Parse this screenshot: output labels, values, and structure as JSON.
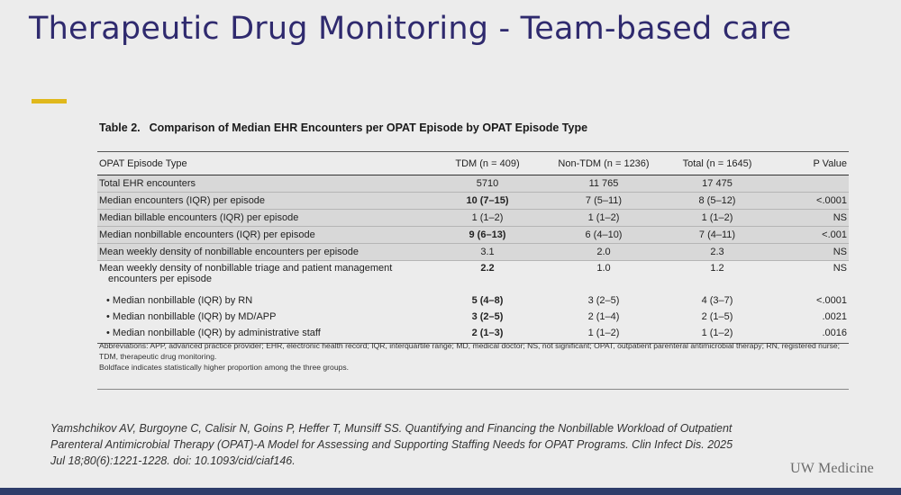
{
  "slide": {
    "title": "Therapeutic Drug Monitoring - Team-based care",
    "accent_color": "#e0b81c",
    "logo": "UW Medicine"
  },
  "table": {
    "label": "Table 2.",
    "title": "Comparison of Median EHR Encounters per OPAT Episode by OPAT Episode Type",
    "headers": [
      "OPAT Episode Type",
      "TDM (n = 409)",
      "Non-TDM (n = 1236)",
      "Total (n = 1645)",
      "P Value"
    ],
    "rows": [
      {
        "label": "Total EHR encounters",
        "tdm": "5710",
        "non_tdm": "11 765",
        "total": "17 475",
        "p": ""
      },
      {
        "label": "Median encounters (IQR) per episode",
        "tdm": "10 (7–15)",
        "non_tdm": "7 (5–11)",
        "total": "8 (5–12)",
        "p": "<.0001"
      },
      {
        "label": "Median billable encounters (IQR) per episode",
        "tdm": "1 (1–2)",
        "non_tdm": "1 (1–2)",
        "total": "1 (1–2)",
        "p": "NS"
      },
      {
        "label": "Median nonbillable encounters (IQR) per episode",
        "tdm": "9 (6–13)",
        "non_tdm": "6 (4–10)",
        "total": "7 (4–11)",
        "p": "<.001"
      },
      {
        "label": "Mean weekly density of nonbillable encounters per episode",
        "tdm": "3.1",
        "non_tdm": "2.0",
        "total": "2.3",
        "p": "NS"
      },
      {
        "label": "Mean weekly density of nonbillable triage and patient management",
        "label_cont": "encounters per episode",
        "tdm": "2.2",
        "non_tdm": "1.0",
        "total": "1.2",
        "p": "NS"
      },
      {
        "label": "• Median nonbillable (IQR) by RN",
        "tdm": "5 (4–8)",
        "non_tdm": "3 (2–5)",
        "total": "4 (3–7)",
        "p": "<.0001"
      },
      {
        "label": "• Median nonbillable (IQR) by MD/APP",
        "tdm": "3 (2–5)",
        "non_tdm": "2 (1–4)",
        "total": "2 (1–5)",
        "p": ".0021"
      },
      {
        "label": "• Median nonbillable (IQR) by administrative staff",
        "tdm": "2 (1–3)",
        "non_tdm": "1 (1–2)",
        "total": "1 (1–2)",
        "p": ".0016"
      }
    ],
    "footnotes": [
      "Abbreviations: APP, advanced practice provider; EHR, electronic health record; IQR, interquartile range; MD, medical doctor; NS, not significant; OPAT, outpatient parenteral antimicrobial therapy; RN, registered nurse; TDM, therapeutic drug monitoring.",
      "Boldface indicates statistically higher proportion among the three groups."
    ]
  },
  "citation": {
    "line1": "Yamshchikov AV, Burgoyne C, Calisir N, Goins P, Heffer T, Munsiff SS. Quantifying and Financing the Nonbillable Workload of Outpatient",
    "line2": "Parenteral Antimicrobial Therapy (OPAT)-A Model for Assessing and Supporting Staffing Needs for OPAT Programs. Clin Infect Dis. 2025",
    "line3": "Jul 18;80(6):1221-1228. doi: 10.1093/cid/ciaf146."
  }
}
